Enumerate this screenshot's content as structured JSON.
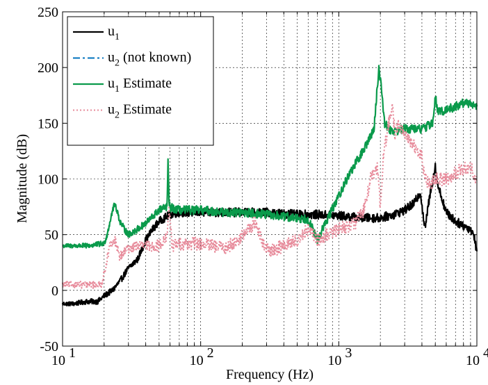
{
  "chart_data": {
    "type": "line",
    "xscale": "log",
    "xlim": [
      10,
      10000
    ],
    "ylim": [
      -50,
      250
    ],
    "grid": true,
    "legend_position": "top-left",
    "title": "",
    "xlabel": "Frequency (Hz)",
    "ylabel": "Magnitude (dB)",
    "x_ticks": [
      {
        "value": 10,
        "base": "10",
        "exp": "1"
      },
      {
        "value": 100,
        "base": "10",
        "exp": "2"
      },
      {
        "value": 1000,
        "base": "10",
        "exp": "3"
      },
      {
        "value": 10000,
        "base": "10",
        "exp": "4"
      }
    ],
    "y_ticks": [
      -50,
      0,
      50,
      100,
      150,
      200,
      250
    ],
    "series": [
      {
        "name": "u1",
        "legend_main": "u",
        "legend_sub": "1",
        "legend_rest": "",
        "color": "#000000",
        "dash": "",
        "width": 2.2,
        "noise": 4,
        "dense": true,
        "x": [
          10,
          12,
          15,
          18,
          20,
          23,
          26,
          30,
          35,
          40,
          45,
          50,
          60,
          70,
          100,
          150,
          200,
          300,
          500,
          700,
          1000,
          1500,
          2000,
          2500,
          3000,
          3500,
          3900,
          4200,
          4500,
          5000,
          5200,
          6000,
          7000,
          8000,
          9000,
          9500,
          10000
        ],
        "y": [
          -12,
          -12,
          -10,
          -10,
          -5,
          0,
          8,
          20,
          28,
          45,
          55,
          62,
          68,
          70,
          70,
          70,
          70,
          70,
          68,
          68,
          67,
          65,
          65,
          68,
          72,
          78,
          88,
          55,
          80,
          112,
          95,
          70,
          62,
          58,
          55,
          50,
          35
        ]
      },
      {
        "name": "u2 (not known)",
        "legend_main": "u",
        "legend_sub": "2",
        "legend_rest": " (not known)",
        "color": "#0072BD",
        "dash": "10 4 3 4",
        "width": 2,
        "noise": 0,
        "dense": false,
        "x": [],
        "y": []
      },
      {
        "name": "u1 Estimate",
        "legend_main": "u",
        "legend_sub": "1",
        "legend_rest": " Estimate",
        "color": "#0a9a4b",
        "dash": "",
        "width": 2.2,
        "noise": 4,
        "dense": true,
        "x": [
          10,
          15,
          20,
          21,
          23,
          24,
          26,
          28,
          30,
          35,
          40,
          50,
          57,
          58,
          59,
          60,
          62,
          70,
          100,
          150,
          200,
          300,
          400,
          600,
          700,
          800,
          1000,
          1200,
          1500,
          1800,
          1950,
          2050,
          2150,
          2300,
          2500,
          3000,
          4000,
          4800,
          5000,
          5200,
          6000,
          7000,
          8000,
          9000,
          10000
        ],
        "y": [
          40,
          40,
          42,
          50,
          72,
          78,
          62,
          55,
          50,
          55,
          60,
          72,
          75,
          115,
          80,
          74,
          74,
          72,
          72,
          70,
          70,
          68,
          66,
          64,
          45,
          60,
          85,
          105,
          125,
          145,
          200,
          178,
          150,
          145,
          143,
          145,
          145,
          150,
          175,
          160,
          162,
          165,
          168,
          168,
          165
        ]
      },
      {
        "name": "u2 Estimate",
        "legend_main": "u",
        "legend_sub": "2",
        "legend_rest": " Estimate",
        "color": "#e78a9a",
        "dash": "2 3",
        "width": 2,
        "noise": 6,
        "dense": true,
        "x": [
          10,
          15,
          19,
          20,
          22,
          24,
          26,
          30,
          35,
          40,
          50,
          57,
          59,
          62,
          70,
          100,
          150,
          200,
          250,
          280,
          320,
          400,
          500,
          600,
          700,
          1000,
          1300,
          1500,
          1700,
          1900,
          2000,
          2100,
          2300,
          2450,
          2550,
          2700,
          3000,
          3500,
          4000,
          4200,
          4700,
          5000,
          6000,
          7000,
          8000,
          9000,
          10000
        ],
        "y": [
          5,
          5,
          5,
          15,
          40,
          45,
          30,
          38,
          40,
          40,
          40,
          48,
          75,
          40,
          42,
          42,
          38,
          48,
          62,
          42,
          35,
          40,
          45,
          55,
          45,
          55,
          60,
          70,
          100,
          110,
          75,
          120,
          150,
          165,
          140,
          150,
          140,
          130,
          120,
          100,
          95,
          100,
          100,
          105,
          110,
          110,
          100
        ]
      }
    ]
  }
}
